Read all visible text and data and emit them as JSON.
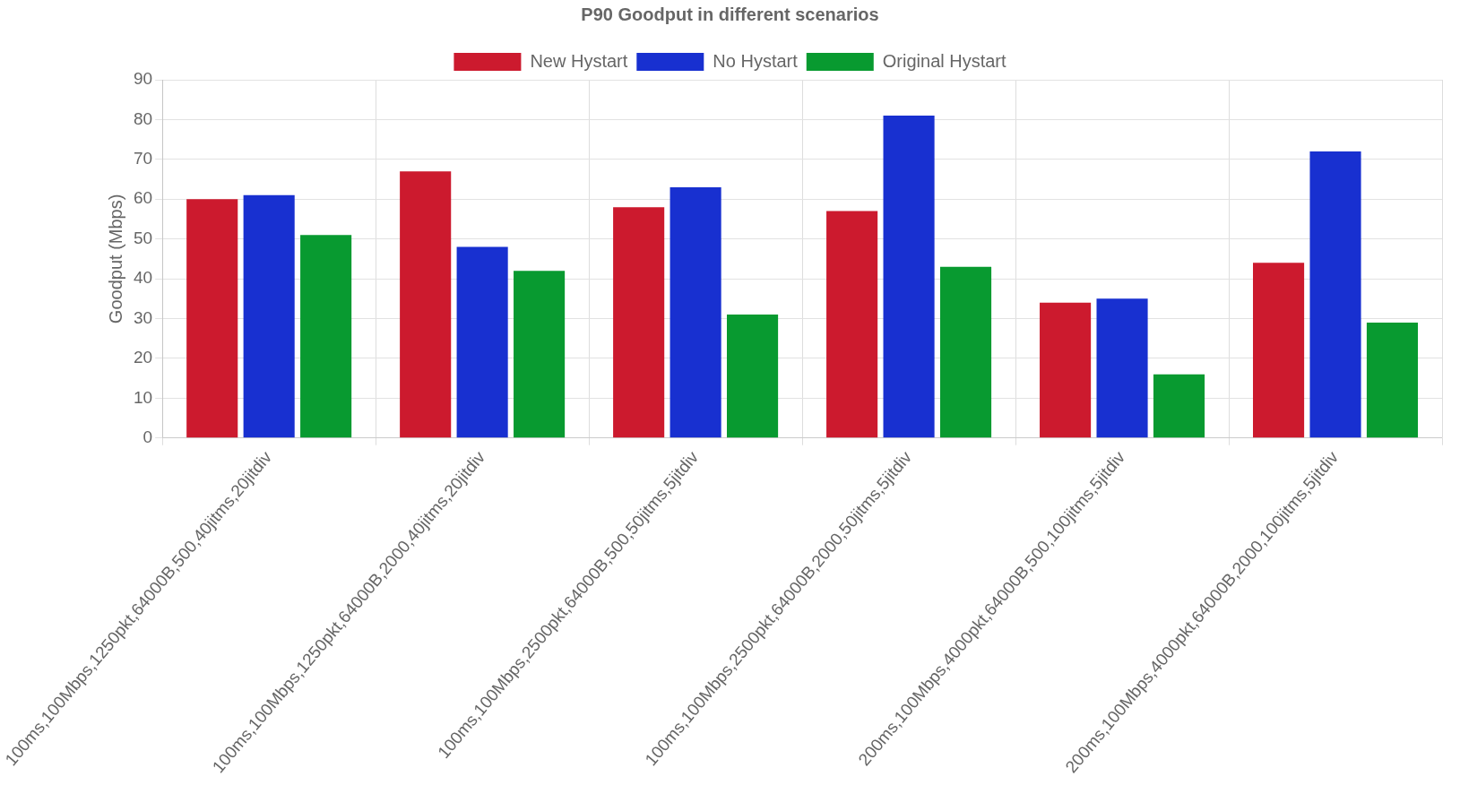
{
  "chart_data": {
    "type": "bar",
    "title": "P90 Goodput in different scenarios",
    "ylabel": "Goodput (Mbps)",
    "categories": [
      "100ms,100Mbps,1250pkt,64000B,500,40jitms,20jitdiv",
      "100ms,100Mbps,1250pkt,64000B,2000,40jitms,20jitdiv",
      "100ms,100Mbps,2500pkt,64000B,500,50jitms,5jitdiv",
      "100ms,100Mbps,2500pkt,64000B,2000,50jitms,5jitdiv",
      "200ms,100Mbps,4000pkt,64000B,500,100jitms,5jitdiv",
      "200ms,100Mbps,4000pkt,64000B,2000,100jitms,5jitdiv"
    ],
    "series": [
      {
        "name": "New Hystart",
        "color": "#cc1a2e",
        "values": [
          60,
          67,
          58,
          57,
          34,
          44
        ]
      },
      {
        "name": "No Hystart",
        "color": "#1830d0",
        "values": [
          61,
          48,
          63,
          81,
          35,
          72
        ]
      },
      {
        "name": "Original Hystart",
        "color": "#089a30",
        "values": [
          51,
          42,
          31,
          43,
          16,
          29
        ]
      }
    ],
    "ylim": [
      0,
      90
    ],
    "yticks": [
      0,
      10,
      20,
      30,
      40,
      50,
      60,
      70,
      80,
      90
    ],
    "grid": true,
    "legend": "top"
  }
}
